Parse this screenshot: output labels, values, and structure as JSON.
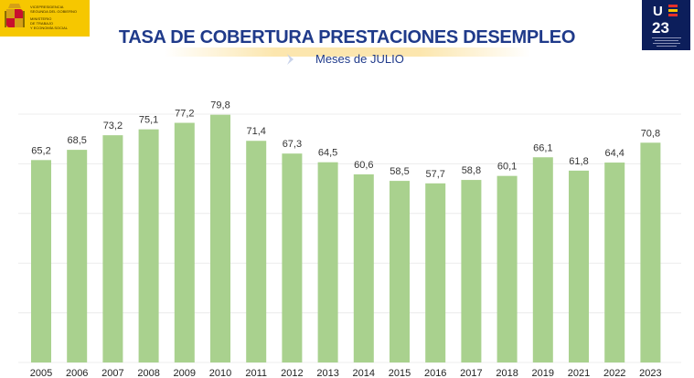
{
  "header": {
    "logo_left_lines": [
      "VICEPRESIDENCIA",
      "SEGUNDA DEL GOBIERNO",
      "MINISTERIO",
      "DE TRABAJO",
      "Y ECONOMÍA SOCIAL"
    ],
    "logo_right_text": "U 23"
  },
  "colors": {
    "bar": "#a9d18e",
    "title": "#1f3a8a",
    "labels": "#333333",
    "logo_right_bg": "#0c1e5b",
    "logo_left_bg": "#f6c700"
  },
  "chart_data": {
    "type": "bar",
    "title": "TASA DE COBERTURA PRESTACIONES DESEMPLEO",
    "subtitle": "Meses de JULIO",
    "categories": [
      "2005",
      "2006",
      "2007",
      "2008",
      "2009",
      "2010",
      "2011",
      "2012",
      "2013",
      "2014",
      "2015",
      "2016",
      "2017",
      "2018",
      "2019",
      "2021",
      "2022",
      "2023"
    ],
    "values": [
      65.2,
      68.5,
      73.2,
      75.1,
      77.2,
      79.8,
      71.4,
      67.3,
      64.5,
      60.6,
      58.5,
      57.7,
      58.8,
      60.1,
      66.1,
      61.8,
      64.4,
      70.8
    ],
    "value_labels": [
      "65,2",
      "68,5",
      "73,2",
      "75,1",
      "77,2",
      "79,8",
      "71,4",
      "67,3",
      "64,5",
      "60,6",
      "58,5",
      "57,7",
      "58,8",
      "60,1",
      "66,1",
      "61,8",
      "64,4",
      "70,8"
    ],
    "ylim": [
      0,
      80
    ],
    "xlabel": "",
    "ylabel": "",
    "grid": true,
    "legend": "none"
  }
}
